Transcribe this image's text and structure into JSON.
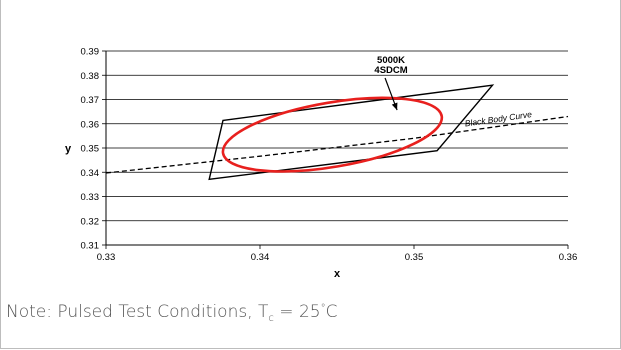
{
  "chart_data": {
    "type": "line",
    "title": "",
    "xlabel": "x",
    "ylabel": "y",
    "xlim": [
      0.33,
      0.36
    ],
    "ylim": [
      0.31,
      0.39
    ],
    "x_ticks": [
      "0.33",
      "0.34",
      "0.35",
      "0.36"
    ],
    "y_ticks": [
      "0.31",
      "0.32",
      "0.33",
      "0.34",
      "0.35",
      "0.36",
      "0.37",
      "0.38",
      "0.39"
    ],
    "grid": "horizontal",
    "series": [
      {
        "name": "Black Body Curve",
        "style": "dashed",
        "color": "#000000",
        "points": [
          [
            0.33,
            0.3397
          ],
          [
            0.34,
            0.3466
          ],
          [
            0.35,
            0.354
          ],
          [
            0.36,
            0.363
          ]
        ]
      },
      {
        "name": "",
        "style": "solid",
        "color": "#000000",
        "closed": true,
        "points": [
          [
            0.3376,
            0.3614
          ],
          [
            0.3551,
            0.3759
          ],
          [
            0.3515,
            0.3489
          ],
          [
            0.3367,
            0.3371
          ]
        ]
      },
      {
        "name": "",
        "style": "ellipse",
        "color": "#e8201e",
        "center": [
          0.3447,
          0.3555
        ],
        "ellipse_points": [
          [
            0.3377,
            0.348
          ],
          [
            0.3463,
            0.3646
          ],
          [
            0.3519,
            0.3633
          ],
          [
            0.3432,
            0.3468
          ]
        ]
      }
    ],
    "annotations": [
      {
        "text": "5000K",
        "target": [
          0.3489,
          0.3644
        ]
      },
      {
        "text": "4SDCM",
        "target": [
          0.3489,
          0.3644
        ]
      },
      {
        "text": "Black Body Curve"
      }
    ]
  },
  "note": {
    "prefix": "Note: Pulsed Test Conditions, T",
    "subscript": "c",
    "value": " = 25",
    "degree": "°",
    "unit": "C"
  }
}
